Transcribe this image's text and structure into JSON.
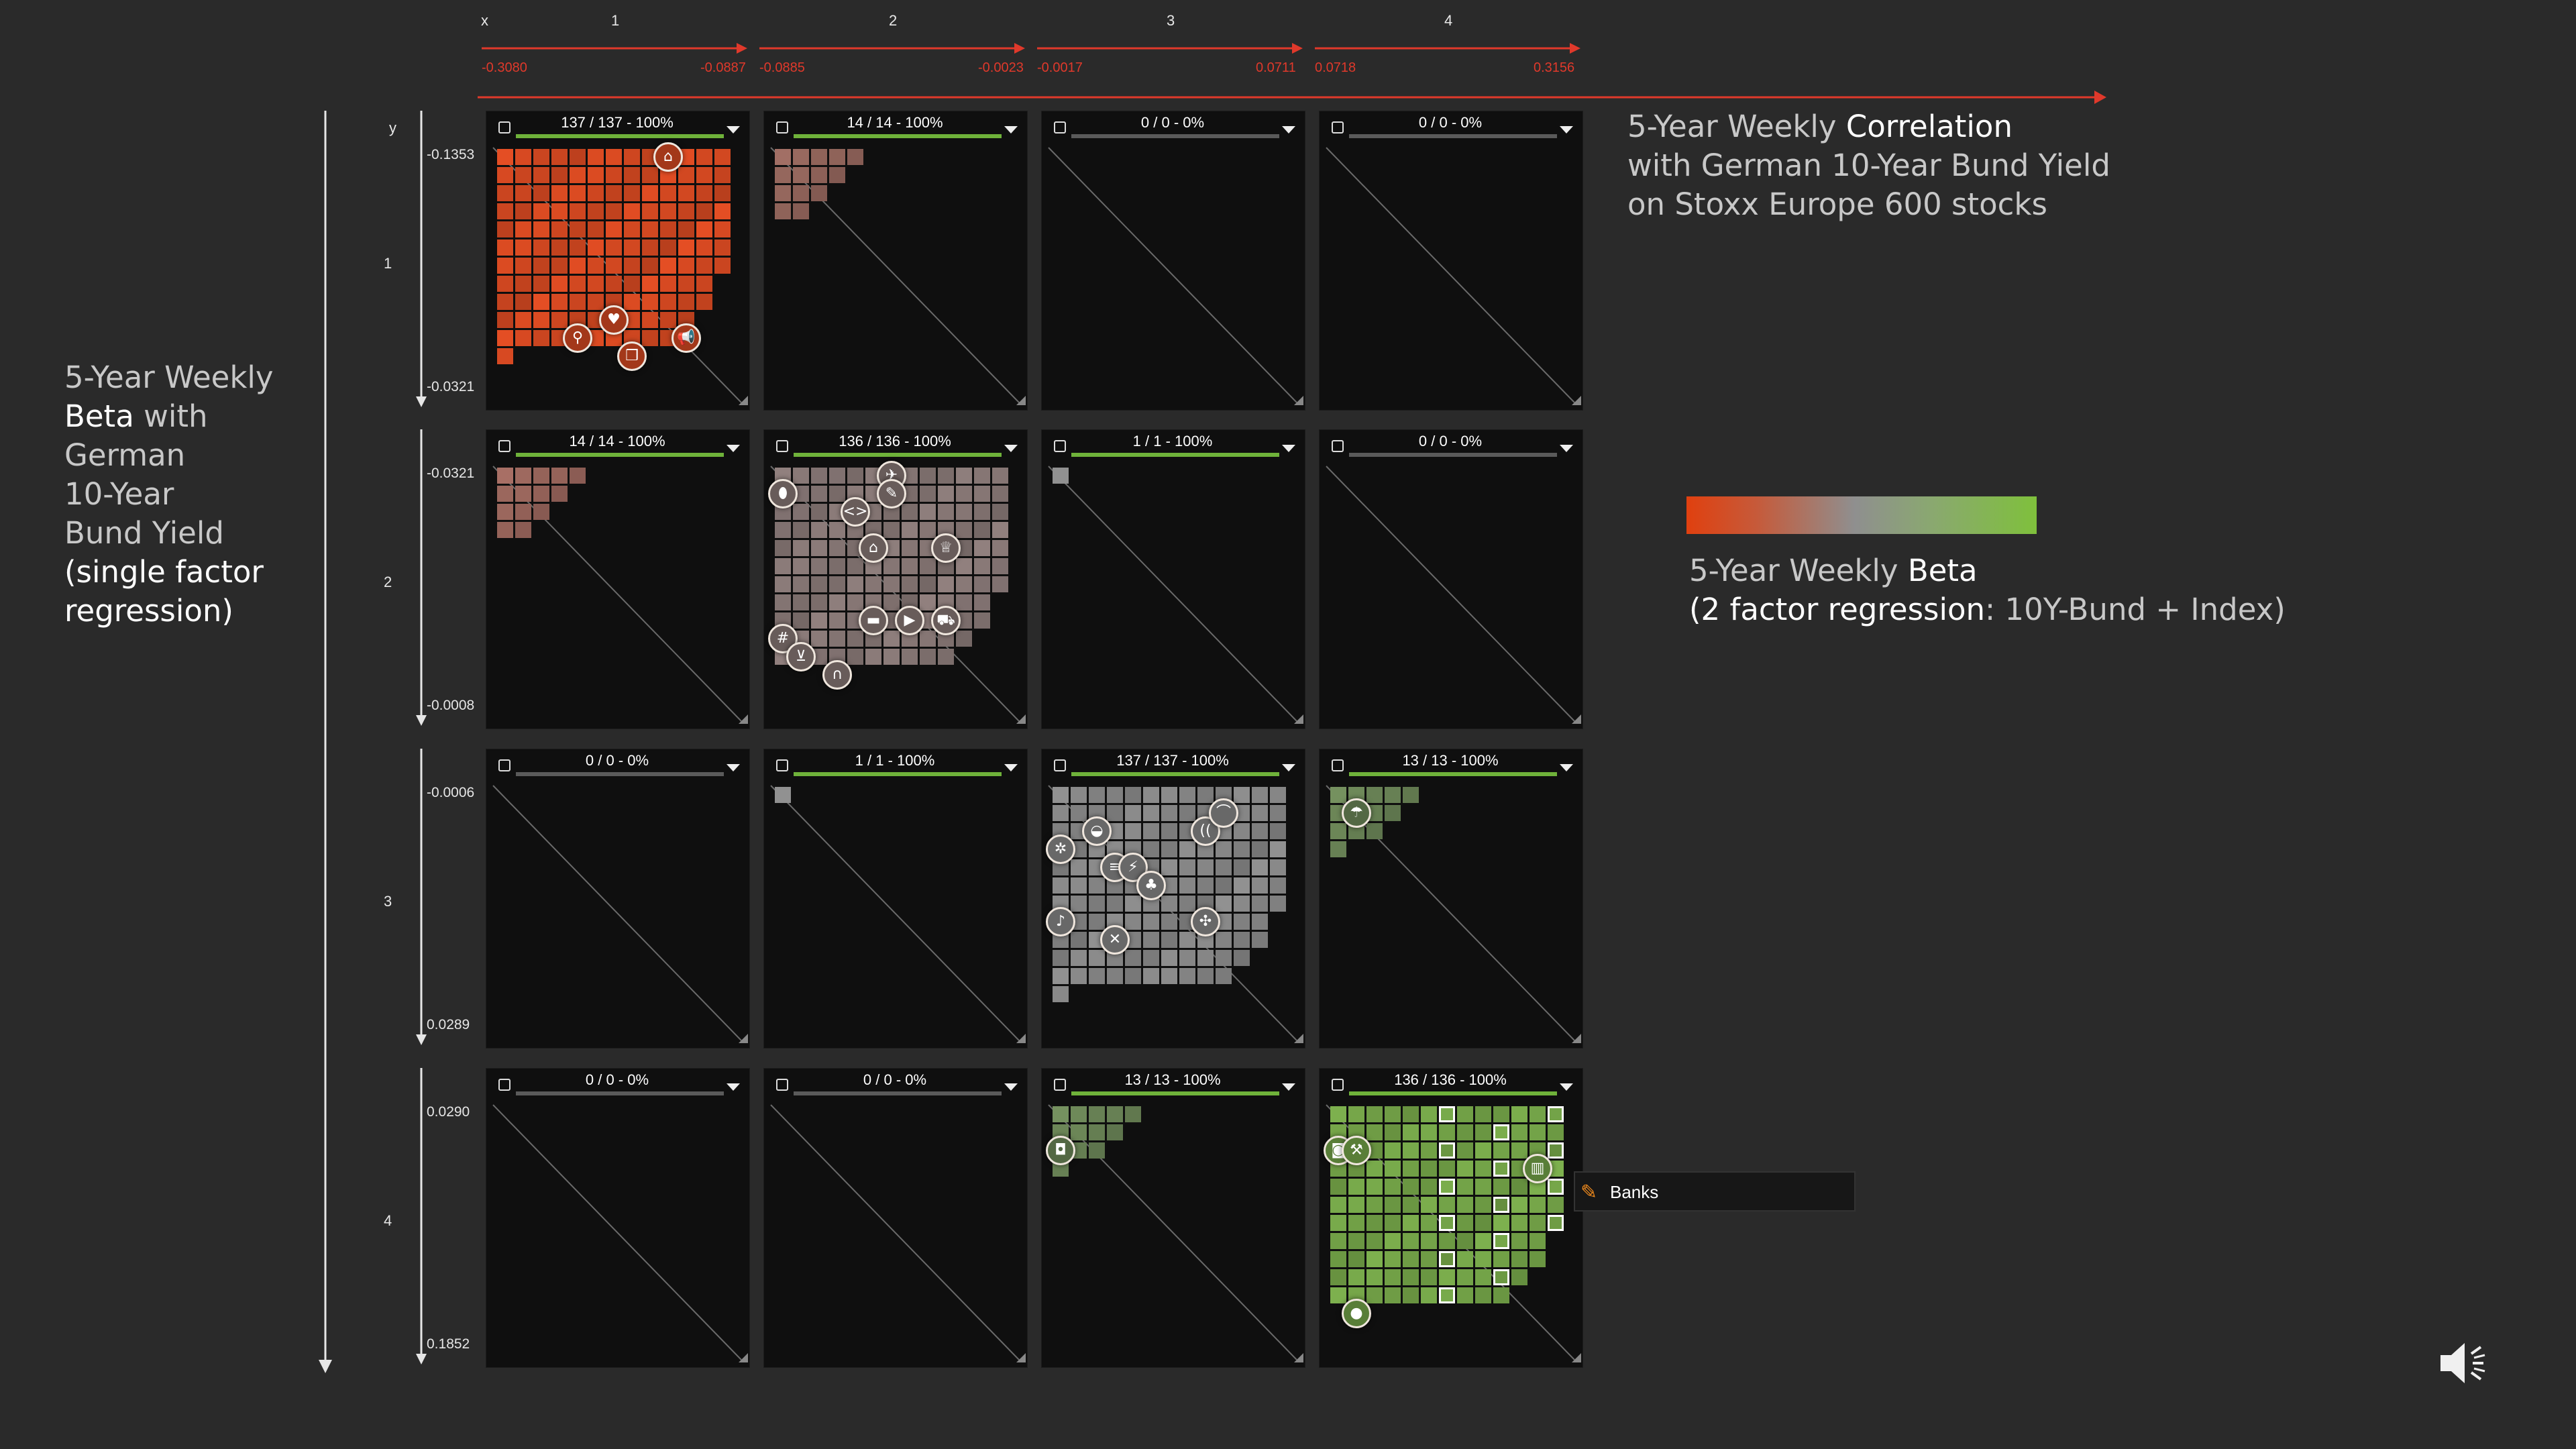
{
  "x_axis": {
    "label": "x",
    "columns": [
      {
        "num": "1",
        "min": "-0.3080",
        "max": "-0.0887"
      },
      {
        "num": "2",
        "min": "-0.0885",
        "max": "-0.0023"
      },
      {
        "num": "3",
        "min": "-0.0017",
        "max": "0.0711"
      },
      {
        "num": "4",
        "min": "0.0718",
        "max": "0.3156"
      }
    ]
  },
  "y_axis": {
    "label": "y",
    "rows": [
      {
        "num": "1",
        "min": "-0.1353",
        "max": "-0.0321"
      },
      {
        "num": "2",
        "min": "-0.0321",
        "max": "-0.0008"
      },
      {
        "num": "3",
        "min": "-0.0006",
        "max": "0.0289"
      },
      {
        "num": "4",
        "min": "0.0290",
        "max": "0.1852"
      }
    ]
  },
  "panels": [
    [
      {
        "title": "137 / 137 - 100%",
        "fill": 1,
        "count": 137,
        "color": "#d94a22",
        "icons": [
          [
            "home-icon",
            "⌂",
            9,
            0
          ],
          [
            "faucet-icon",
            "⚲",
            4,
            10
          ],
          [
            "heart-icon",
            "♥",
            6,
            9
          ],
          [
            "cube-icon",
            "❒",
            7,
            11
          ],
          [
            "megaphone-icon",
            "📢",
            10,
            10
          ]
        ]
      },
      {
        "title": "14 / 14 - 100%",
        "fill": 1,
        "count": 14,
        "color": "#9a6a60",
        "icons": []
      },
      {
        "title": "0 / 0 - 0%",
        "fill": 0,
        "count": 0,
        "color": "#888888",
        "icons": []
      },
      {
        "title": "0 / 0 - 0%",
        "fill": 0,
        "count": 0,
        "color": "#888888",
        "icons": []
      }
    ],
    [
      {
        "title": "14 / 14 - 100%",
        "fill": 1,
        "count": 14,
        "color": "#a06a60",
        "icons": []
      },
      {
        "title": "136 / 136 - 100%",
        "fill": 1,
        "count": 136,
        "color": "#8a7a78",
        "icons": [
          [
            "pill-icon",
            "⬮",
            0,
            1
          ],
          [
            "rocket-icon",
            "✈",
            6,
            0
          ],
          [
            "wrench-icon",
            "✎",
            6,
            1
          ],
          [
            "code-icon",
            "<>",
            4,
            2
          ],
          [
            "basket-icon",
            "⌂",
            5,
            4
          ],
          [
            "trophy-icon",
            "♕",
            9,
            4
          ],
          [
            "grid-icon",
            "#",
            0,
            9
          ],
          [
            "cart-icon",
            "⊻",
            1,
            10
          ],
          [
            "headphones-icon",
            "∩",
            3,
            11
          ],
          [
            "car-icon",
            "▬",
            5,
            8
          ],
          [
            "play-icon",
            "▶",
            7,
            8
          ],
          [
            "truck-icon",
            "⛟",
            9,
            8
          ]
        ]
      },
      {
        "title": "1 / 1 - 100%",
        "fill": 1,
        "count": 1,
        "color": "#8a8a8a",
        "icons": []
      },
      {
        "title": "0 / 0 - 0%",
        "fill": 0,
        "count": 0,
        "color": "#888888",
        "icons": []
      }
    ],
    [
      {
        "title": "0 / 0 - 0%",
        "fill": 0,
        "count": 0,
        "color": "#888888",
        "icons": []
      },
      {
        "title": "1 / 1 - 100%",
        "fill": 1,
        "count": 1,
        "color": "#8a8a8a",
        "icons": []
      },
      {
        "title": "137 / 137 - 100%",
        "fill": 1,
        "count": 137,
        "color": "#8a8a8a",
        "icons": [
          [
            "gear-icon",
            "✲",
            0,
            3
          ],
          [
            "hardhat-icon",
            "◒",
            2,
            2
          ],
          [
            "server-icon",
            "≡",
            3,
            4
          ],
          [
            "plug-icon",
            "⚡",
            4,
            4
          ],
          [
            "sitemap-icon",
            "♣",
            5,
            5
          ],
          [
            "antenna-icon",
            "((",
            8,
            2
          ],
          [
            "pipe-icon",
            "⌒",
            9,
            1
          ],
          [
            "guitar-icon",
            "♪",
            0,
            7
          ],
          [
            "tools-icon",
            "✕",
            3,
            8
          ],
          [
            "arrows-icon",
            "✣",
            8,
            7
          ]
        ]
      },
      {
        "title": "13 / 13 - 100%",
        "fill": 1,
        "count": 13,
        "color": "#6f8a5a",
        "icons": [
          [
            "umbrella-icon",
            "☂",
            1,
            1
          ]
        ]
      }
    ],
    [
      {
        "title": "0 / 0 - 0%",
        "fill": 0,
        "count": 0,
        "color": "#888888",
        "icons": []
      },
      {
        "title": "0 / 0 - 0%",
        "fill": 0,
        "count": 0,
        "color": "#888888",
        "icons": []
      },
      {
        "title": "13 / 13 - 100%",
        "fill": 1,
        "count": 13,
        "color": "#6f8a5a",
        "icons": [
          [
            "train-icon",
            "◘",
            0,
            2
          ]
        ]
      },
      {
        "title": "136 / 136 - 100%",
        "fill": 1,
        "count": 136,
        "color": "#77a84a",
        "icons": [
          [
            "database-icon",
            "◙",
            0,
            2
          ],
          [
            "hammer-icon",
            "⚒",
            1,
            2
          ],
          [
            "bank-icon",
            "▥",
            11,
            3
          ],
          [
            "drop-icon",
            "●",
            1,
            11
          ]
        ]
      }
    ]
  ],
  "headings": {
    "correlation": [
      "5-Year Weekly ",
      "Correlation",
      "with German 10-Year Bund Yield",
      "on Stoxx Europe 600 stocks"
    ],
    "beta_single": [
      "5-Year Weekly",
      "Beta",
      " with",
      "German",
      "10-Year",
      "Bund Yield",
      "(single factor",
      "regression)"
    ],
    "beta_two": [
      "5-Year Weekly ",
      "Beta",
      "(2 factor regression",
      ": 10Y-Bund + Index)"
    ]
  },
  "tooltip": {
    "label": "Banks"
  },
  "colors": {
    "negative": "#d9421a",
    "neutral": "#8c8c8c",
    "positive": "#7cb83a",
    "axis_x": "#e0392b",
    "axis_y": "#e6e6e6"
  }
}
